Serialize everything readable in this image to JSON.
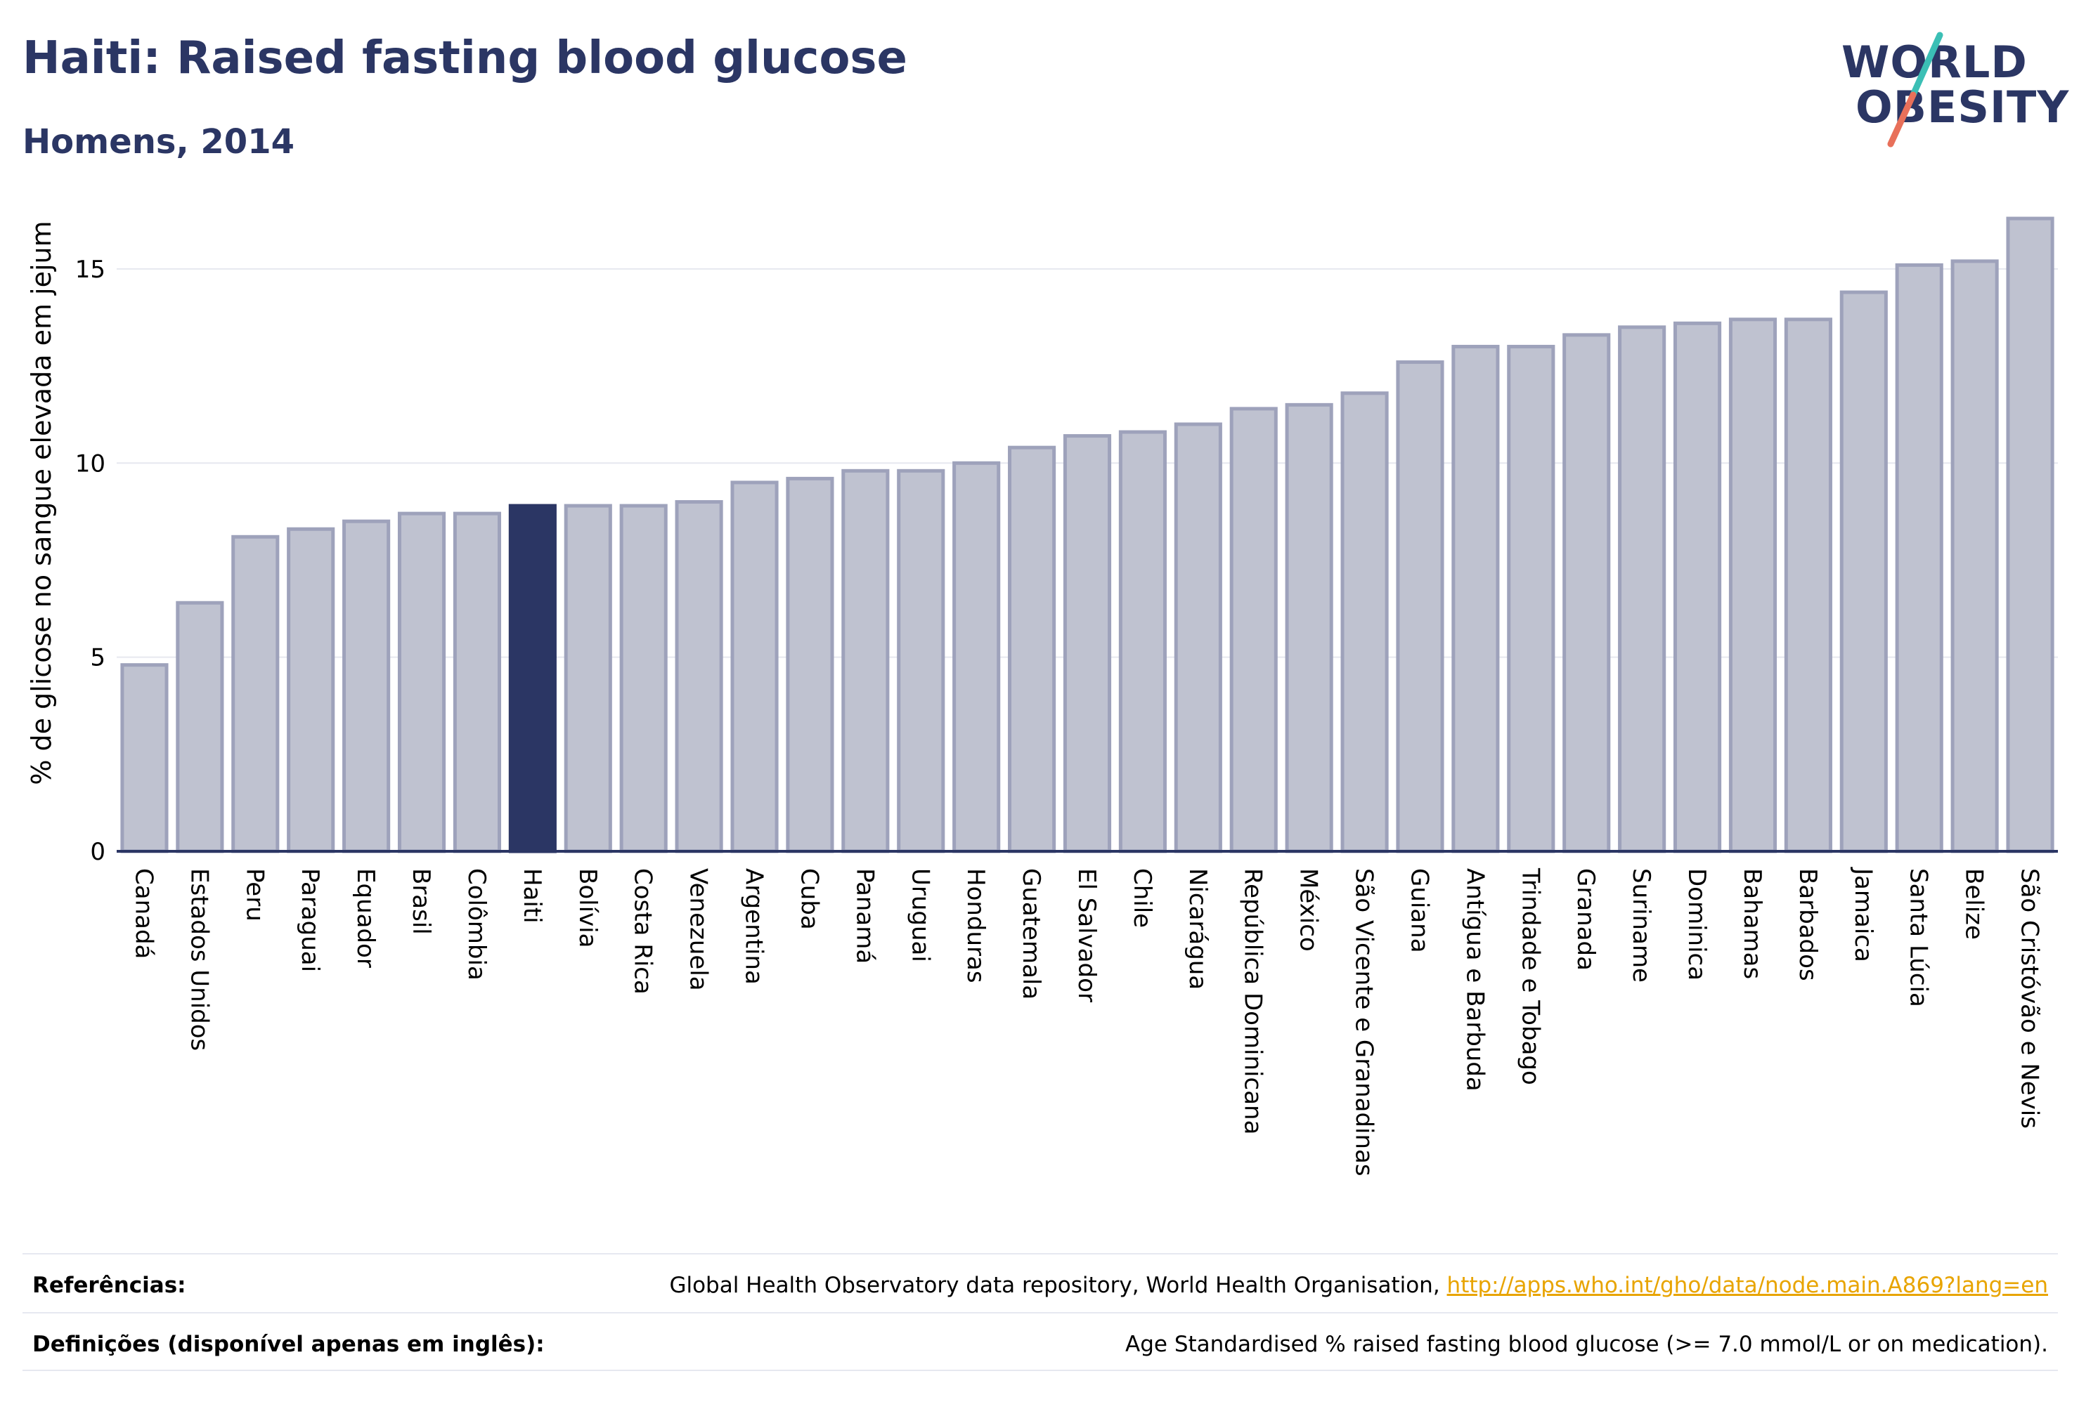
{
  "header": {
    "title": "Haiti: Raised fasting blood glucose",
    "subtitle": "Homens, 2014"
  },
  "logo": {
    "line1": "WORLD",
    "line2": "OBESITY",
    "colors": {
      "text": "#2b3664",
      "accent1": "#3bbfb5",
      "accent2": "#e8705a"
    }
  },
  "colors": {
    "bar": "#bfc2d0",
    "bar_border": "#9ea2bb",
    "highlight": "#2b3664",
    "grid": "#e6e8ef",
    "axis": "#2b3664"
  },
  "chart_data": {
    "type": "bar",
    "title": "Haiti: Raised fasting blood glucose",
    "subtitle": "Homens, 2014",
    "ylabel": "% de glicose no sangue elevada em jejum",
    "xlabel": "",
    "ylim": [
      0,
      16.5
    ],
    "yticks": [
      0,
      5,
      10,
      15
    ],
    "grid": true,
    "highlight": "Haiti",
    "categories": [
      "Canadá",
      "Estados Unidos",
      "Peru",
      "Paraguai",
      "Equador",
      "Brasil",
      "Colômbia",
      "Haiti",
      "Bolívia",
      "Costa Rica",
      "Venezuela",
      "Argentina",
      "Cuba",
      "Panamá",
      "Uruguai",
      "Honduras",
      "Guatemala",
      "El Salvador",
      "Chile",
      "Nicarágua",
      "República Dominicana",
      "México",
      "São Vicente e Granadinas",
      "Guiana",
      "Antígua e Barbuda",
      "Trindade e Tobago",
      "Granada",
      "Suriname",
      "Dominica",
      "Bahamas",
      "Barbados",
      "Jamaica",
      "Santa Lúcia",
      "Belize",
      "São Cristóvão e Nevis"
    ],
    "values": [
      4.8,
      6.4,
      8.1,
      8.3,
      8.5,
      8.7,
      8.7,
      8.9,
      8.9,
      8.9,
      9.0,
      9.5,
      9.6,
      9.8,
      9.8,
      10.0,
      10.4,
      10.7,
      10.8,
      11.0,
      11.4,
      11.5,
      11.8,
      12.6,
      13.0,
      13.0,
      13.3,
      13.5,
      13.6,
      13.7,
      13.7,
      14.4,
      15.1,
      15.2,
      16.3
    ]
  },
  "footer": {
    "references_label": "Referências:",
    "references_text": "Global Health Observatory data repository, World Health Organisation, ",
    "references_link": "http://apps.who.int/gho/data/node.main.A869?lang=en",
    "definitions_label": "Definições (disponível apenas em inglês):",
    "definitions_text": "Age Standardised % raised fasting blood glucose (>= 7.0 mmol/L or on medication)."
  }
}
